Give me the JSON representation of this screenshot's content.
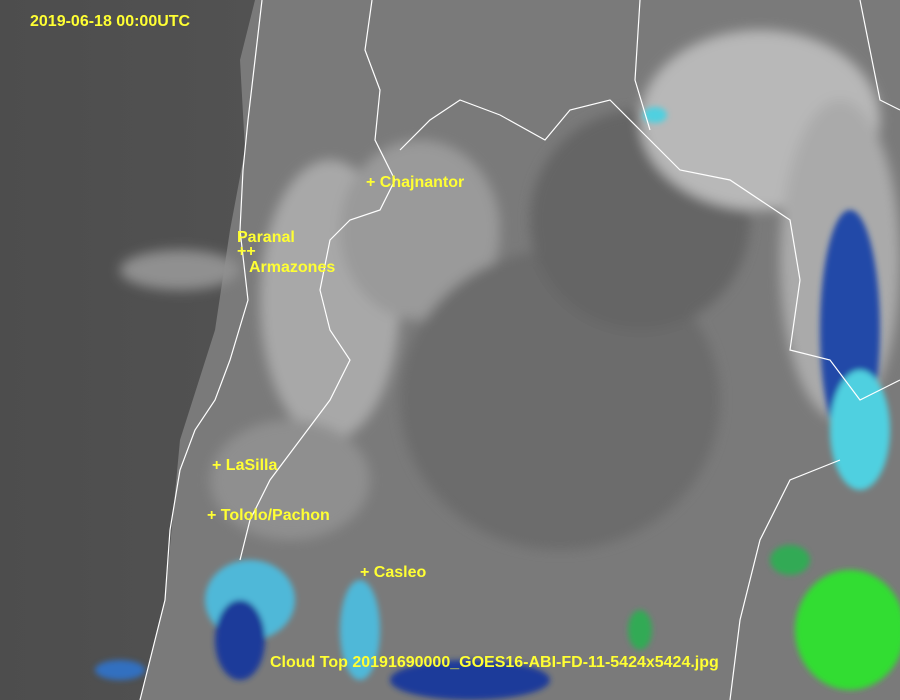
{
  "timestamp": "2019-06-18 00:00UTC",
  "caption": "Cloud Top 20191690000_GOES16-ABI-FD-11-5424x5424.jpg",
  "label_color": "#ffff33",
  "sites": [
    {
      "name": "+ Chajnantor"
    },
    {
      "name": "Paranal"
    },
    {
      "name": "++"
    },
    {
      "name": "Armazones"
    },
    {
      "name": "+ LaSilla"
    },
    {
      "name": "+ Tololo/Pachon"
    },
    {
      "name": "+ Casleo"
    }
  ],
  "palette": {
    "ocean": "#555555",
    "land": "#8a8a8a",
    "border": "#ffffff",
    "cold_cloud": "#1a3a9a",
    "cyan_cloud": "#4fd0e0",
    "green_cloud": "#33dd33"
  }
}
